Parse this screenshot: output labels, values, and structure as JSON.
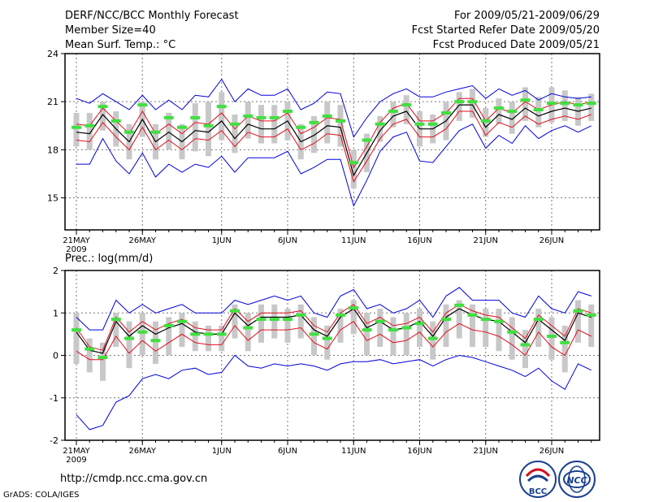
{
  "header": {
    "title": "DERF/NCC/BCC Monthly Forecast",
    "member_size": "Member Size=40",
    "variable": "Mean Surf. Temp.: °C",
    "period": "For 2009/05/21-2009/06/29",
    "fcst_started": "Fcst Started Refer Date 2009/05/20",
    "fcst_produced": "Fcst Produced Date 2009/05/21"
  },
  "footer": {
    "url": "http://cmdp.ncc.cma.gov.cn",
    "grads": "GrADS: COLA/IGES",
    "logo_bcc": "BCC",
    "logo_ncc": "NCC"
  },
  "colors": {
    "mean": "#000000",
    "inner": "#e01020",
    "outer": "#0000dd",
    "box": "#c8c8c8",
    "obs": "#40e040"
  },
  "chart_data": [
    {
      "type": "line",
      "title": "Mean Surf. Temp.: °C",
      "ylim": [
        13.0,
        24.0
      ],
      "yticks": [
        15,
        18,
        21,
        24
      ],
      "xticks": [
        {
          "day": 0,
          "label": "21MAY",
          "sub": "2009"
        },
        {
          "day": 5,
          "label": "26MAY"
        },
        {
          "day": 11,
          "label": "1JUN"
        },
        {
          "day": 16,
          "label": "6JUN"
        },
        {
          "day": 21,
          "label": "11JUN"
        },
        {
          "day": 26,
          "label": "16JUN"
        },
        {
          "day": 31,
          "label": "21JUN"
        },
        {
          "day": 36,
          "label": "26JUN"
        }
      ],
      "grid": true,
      "series": [
        {
          "name": "mean",
          "values": [
            19.1,
            19.0,
            20.2,
            19.3,
            18.5,
            19.9,
            18.5,
            19.1,
            18.5,
            19.2,
            19.1,
            19.8,
            18.7,
            19.6,
            19.3,
            19.3,
            19.8,
            18.5,
            18.9,
            19.5,
            19.4,
            16.4,
            17.8,
            19.2,
            20.1,
            20.4,
            19.3,
            19.3,
            19.8,
            20.8,
            20.8,
            19.4,
            20.2,
            19.9,
            20.6,
            20.1,
            20.4,
            20.6,
            20.4,
            20.6
          ]
        },
        {
          "name": "upper-inner",
          "values": [
            19.6,
            19.5,
            20.6,
            19.8,
            19.0,
            20.4,
            19.0,
            19.6,
            19.0,
            19.7,
            19.6,
            20.3,
            19.3,
            20.1,
            19.8,
            19.8,
            20.3,
            19.0,
            19.4,
            20.0,
            19.9,
            16.9,
            18.2,
            19.7,
            20.6,
            20.9,
            19.8,
            19.8,
            20.3,
            21.2,
            21.2,
            19.8,
            20.6,
            20.3,
            21.0,
            20.5,
            20.8,
            21.0,
            20.8,
            21.0
          ]
        },
        {
          "name": "lower-inner",
          "values": [
            18.6,
            18.5,
            19.7,
            18.8,
            18.0,
            19.4,
            18.0,
            18.6,
            18.0,
            18.7,
            18.6,
            19.2,
            18.2,
            19.1,
            18.8,
            18.8,
            19.3,
            18.0,
            18.4,
            19.0,
            18.9,
            16.0,
            17.3,
            18.7,
            19.6,
            19.9,
            18.8,
            18.8,
            19.3,
            20.4,
            20.4,
            18.9,
            19.7,
            19.4,
            20.1,
            19.6,
            19.9,
            20.1,
            19.9,
            20.2
          ]
        },
        {
          "name": "upper-outer",
          "values": [
            21.2,
            20.9,
            21.5,
            21.0,
            20.5,
            21.4,
            20.5,
            21.1,
            20.5,
            21.4,
            21.3,
            22.4,
            21.0,
            21.8,
            21.4,
            21.4,
            21.8,
            20.5,
            20.9,
            21.6,
            21.5,
            18.8,
            20.0,
            21.0,
            21.5,
            21.8,
            21.3,
            21.3,
            21.6,
            21.8,
            22.0,
            21.2,
            21.8,
            21.4,
            21.7,
            21.1,
            21.5,
            21.3,
            21.2,
            21.3
          ]
        },
        {
          "name": "lower-outer",
          "values": [
            17.1,
            17.1,
            18.7,
            17.3,
            16.5,
            17.8,
            16.3,
            17.1,
            16.6,
            17.1,
            16.9,
            17.6,
            16.6,
            17.5,
            17.5,
            17.5,
            17.9,
            16.5,
            16.9,
            17.4,
            17.4,
            14.5,
            16.1,
            17.9,
            18.8,
            19.1,
            17.3,
            17.2,
            18.2,
            19.2,
            19.6,
            18.1,
            18.9,
            18.4,
            19.5,
            18.7,
            19.2,
            19.5,
            19.1,
            19.5
          ]
        },
        {
          "name": "box-high",
          "values": [
            20.3,
            20.3,
            21.0,
            20.4,
            19.6,
            21.0,
            19.6,
            20.3,
            19.6,
            20.9,
            21.0,
            21.6,
            20.2,
            21.0,
            20.8,
            20.8,
            21.0,
            19.6,
            20.1,
            21.0,
            20.8,
            18.0,
            19.0,
            20.1,
            21.0,
            21.4,
            20.4,
            20.2,
            21.0,
            21.6,
            21.8,
            20.6,
            21.2,
            21.0,
            21.9,
            21.3,
            21.9,
            21.7,
            21.3,
            21.5
          ]
        },
        {
          "name": "box-low",
          "values": [
            18.2,
            18.0,
            19.2,
            18.2,
            17.4,
            18.8,
            17.4,
            18.0,
            17.4,
            17.9,
            17.6,
            18.6,
            17.8,
            18.7,
            18.4,
            18.4,
            18.6,
            17.4,
            17.8,
            18.4,
            18.2,
            15.6,
            16.6,
            18.5,
            19.4,
            19.6,
            18.2,
            18.4,
            18.6,
            19.8,
            20.0,
            18.8,
            19.6,
            19.0,
            19.8,
            19.4,
            19.7,
            19.8,
            19.5,
            19.8
          ]
        },
        {
          "name": "observed",
          "values": [
            19.4,
            19.5,
            20.7,
            19.8,
            19.1,
            20.8,
            19.1,
            20.0,
            19.4,
            20.0,
            19.5,
            20.7,
            19.6,
            20.1,
            20.0,
            20.0,
            20.4,
            19.4,
            19.7,
            20.1,
            19.8,
            17.2,
            18.6,
            19.6,
            20.4,
            20.8,
            19.6,
            19.6,
            20.3,
            21.0,
            21.0,
            19.8,
            20.6,
            20.4,
            21.1,
            20.5,
            20.9,
            20.9,
            20.8,
            20.9
          ]
        }
      ]
    },
    {
      "type": "line",
      "title": "Prec.: log(mm/d)",
      "ylim": [
        -2.0,
        2.0
      ],
      "yticks": [
        -2,
        -1,
        0,
        1,
        2
      ],
      "xticks": [
        {
          "day": 0,
          "label": "21MAY",
          "sub": "2009"
        },
        {
          "day": 5,
          "label": "26MAY"
        },
        {
          "day": 11,
          "label": "1JUN"
        },
        {
          "day": 16,
          "label": "6JUN"
        },
        {
          "day": 21,
          "label": "11JUN"
        },
        {
          "day": 26,
          "label": "16JUN"
        },
        {
          "day": 31,
          "label": "21JUN"
        },
        {
          "day": 36,
          "label": "26JUN"
        }
      ],
      "grid": true,
      "series": [
        {
          "name": "mean",
          "values": [
            0.55,
            0.12,
            0.05,
            0.8,
            0.45,
            0.7,
            0.5,
            0.65,
            0.75,
            0.55,
            0.5,
            0.5,
            1.0,
            0.7,
            0.9,
            0.9,
            0.9,
            0.95,
            0.6,
            0.45,
            0.9,
            1.1,
            0.65,
            0.8,
            0.6,
            0.65,
            0.8,
            0.45,
            0.9,
            1.1,
            0.95,
            0.85,
            0.8,
            0.55,
            0.3,
            0.85,
            0.6,
            0.35,
            1.0,
            0.9
          ]
        },
        {
          "name": "upper-inner",
          "values": [
            0.65,
            0.2,
            0.12,
            0.9,
            0.55,
            0.8,
            0.6,
            0.75,
            0.85,
            0.65,
            0.6,
            0.6,
            1.1,
            0.8,
            1.0,
            1.0,
            1.0,
            1.05,
            0.7,
            0.55,
            1.0,
            1.2,
            0.75,
            0.9,
            0.7,
            0.75,
            0.9,
            0.55,
            1.0,
            1.2,
            1.05,
            0.95,
            0.9,
            0.65,
            0.4,
            0.95,
            0.7,
            0.45,
            1.1,
            1.0
          ]
        },
        {
          "name": "lower-inner",
          "values": [
            0.1,
            -0.1,
            -0.1,
            0.45,
            0.05,
            0.35,
            0.1,
            0.3,
            0.5,
            0.3,
            0.25,
            0.25,
            0.7,
            0.35,
            0.6,
            0.6,
            0.6,
            0.65,
            0.3,
            0.15,
            0.6,
            0.8,
            0.35,
            0.5,
            0.3,
            0.35,
            0.55,
            0.2,
            0.55,
            0.75,
            0.6,
            0.55,
            0.45,
            0.25,
            0.0,
            0.55,
            0.2,
            0.0,
            0.6,
            0.45
          ]
        },
        {
          "name": "upper-outer",
          "values": [
            0.9,
            0.6,
            0.6,
            1.3,
            1.0,
            1.2,
            1.0,
            1.1,
            1.2,
            1.0,
            1.0,
            1.0,
            1.3,
            1.2,
            1.3,
            1.4,
            1.3,
            1.4,
            1.0,
            0.9,
            1.4,
            1.55,
            1.1,
            1.2,
            1.0,
            1.1,
            1.3,
            0.9,
            1.4,
            1.6,
            1.3,
            1.3,
            1.3,
            1.0,
            0.9,
            1.4,
            1.1,
            1.0,
            1.5,
            1.4
          ]
        },
        {
          "name": "lower-outer",
          "values": [
            -1.4,
            -1.75,
            -1.65,
            -1.1,
            -0.95,
            -0.55,
            -0.45,
            -0.55,
            -0.35,
            -0.3,
            -0.45,
            -0.4,
            0.0,
            -0.25,
            -0.3,
            -0.2,
            -0.25,
            -0.2,
            -0.25,
            -0.35,
            -0.2,
            -0.15,
            -0.15,
            -0.1,
            -0.2,
            -0.15,
            -0.1,
            -0.25,
            -0.1,
            0.0,
            -0.05,
            -0.15,
            -0.25,
            -0.35,
            -0.5,
            -0.3,
            -0.6,
            -0.8,
            -0.2,
            -0.35
          ]
        },
        {
          "name": "box-high",
          "values": [
            1.0,
            0.4,
            0.3,
            1.0,
            0.8,
            1.0,
            0.8,
            0.9,
            1.0,
            0.8,
            0.7,
            0.7,
            1.2,
            1.0,
            1.2,
            1.2,
            1.1,
            1.2,
            0.9,
            0.7,
            1.1,
            1.3,
            1.0,
            1.1,
            0.9,
            1.0,
            1.1,
            0.8,
            1.2,
            1.3,
            1.2,
            1.1,
            1.1,
            0.9,
            0.6,
            1.1,
            0.9,
            0.7,
            1.3,
            1.2
          ]
        },
        {
          "name": "box-low",
          "values": [
            -0.2,
            -0.4,
            -0.6,
            0.2,
            -0.3,
            0.0,
            -0.2,
            0.0,
            0.2,
            0.1,
            0.1,
            0.1,
            0.4,
            0.1,
            0.3,
            0.4,
            0.3,
            0.4,
            0.0,
            -0.1,
            0.3,
            0.5,
            0.0,
            0.2,
            0.0,
            0.0,
            0.2,
            -0.1,
            0.2,
            0.4,
            0.2,
            0.2,
            0.1,
            -0.1,
            -0.3,
            0.2,
            -0.1,
            -0.4,
            0.3,
            0.2
          ]
        },
        {
          "name": "observed",
          "values": [
            0.6,
            0.15,
            -0.05,
            0.85,
            0.4,
            0.55,
            0.35,
            0.7,
            0.8,
            0.5,
            0.5,
            0.5,
            1.05,
            0.65,
            0.85,
            0.85,
            0.85,
            0.95,
            0.5,
            0.4,
            0.95,
            1.12,
            0.6,
            0.8,
            0.6,
            0.65,
            0.75,
            0.4,
            0.85,
            1.18,
            0.95,
            0.85,
            0.8,
            0.55,
            0.25,
            0.85,
            0.45,
            0.3,
            1.05,
            0.95
          ]
        }
      ]
    }
  ]
}
